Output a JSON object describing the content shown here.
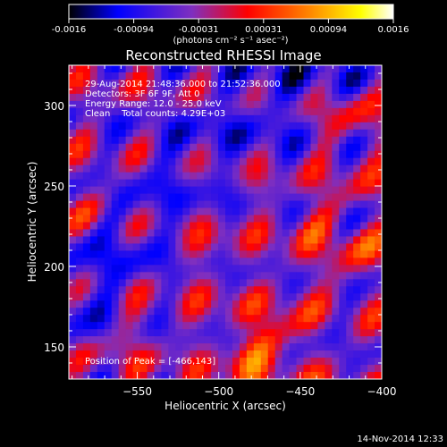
{
  "chart_data": {
    "type": "heatmap",
    "title": "Reconstructed RHESSI Image",
    "xlabel": "Heliocentric X (arcsec)",
    "ylabel": "Heliocentric Y (arcsec)",
    "xlim": [
      -592,
      -400
    ],
    "ylim": [
      130,
      325
    ],
    "xticks": [
      -550,
      -500,
      -450,
      -400
    ],
    "yticks": [
      150,
      200,
      250,
      300
    ],
    "colorbar": {
      "min": -0.0016,
      "max": 0.0016,
      "ticks": [
        "-0.0016",
        "-0.00094",
        "-0.00031",
        "0.00031",
        "0.00094",
        "0.0016"
      ],
      "unit_label": "(photons cm⁻² s⁻¹ asec⁻²)",
      "colormap": [
        "#000000",
        "#0000ff",
        "#7f2fbf",
        "#ff0000",
        "#ff8c00",
        "#ffff00",
        "#ffffff"
      ]
    },
    "annotations": [
      "29-Aug-2014 21:48:36.000 to 21:52:36.000",
      "Detectors: 3F 6F 9F, Att 0",
      "Energy Range: 12.0 - 25.0 keV",
      "Clean    Total counts: 4.29E+03"
    ],
    "peak_label": "Position of Peak = [-466,143]",
    "peak": {
      "x": -466,
      "y": 143
    }
  },
  "footer": {
    "timestamp": "14-Nov-2014 12:33"
  }
}
